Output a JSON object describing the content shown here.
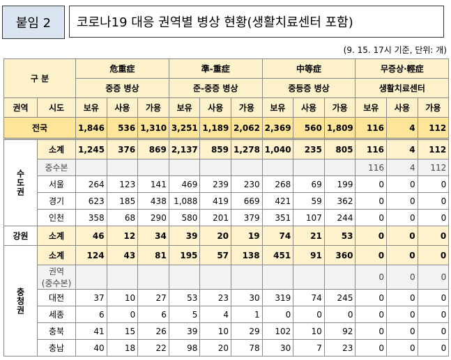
{
  "header": {
    "tag": "붙임 2",
    "title": "코로나19 대응 권역별 병상 현황(생활치료센터 포함)",
    "note": "(9. 15. 17시 기준, 단위: 개)"
  },
  "table": {
    "gubun": "구 분",
    "region_col": "권역",
    "sido_col": "시도",
    "sub_cols": [
      "보유",
      "사용",
      "가용"
    ],
    "groups": [
      {
        "top": "危重症",
        "label": "중증 병상"
      },
      {
        "top": "準-重症",
        "label": "준-중증 병상"
      },
      {
        "top": "中等症",
        "label": "중등증 병상"
      },
      {
        "top": "무증상·輕症",
        "label": "생활치료센터"
      }
    ],
    "national": {
      "name": "전국",
      "cells": [
        "1,846",
        "536",
        "1,310",
        "3,251",
        "1,189",
        "2,062",
        "2,369",
        "560",
        "1,809",
        "116",
        "4",
        "112"
      ]
    },
    "regions": [
      {
        "name": "수도권",
        "rows": [
          {
            "name": "소계",
            "cells": [
              "1,245",
              "376",
              "869",
              "2,137",
              "859",
              "1,278",
              "1,040",
              "235",
              "805",
              "116",
              "4",
              "112"
            ]
          },
          {
            "name": "중수본",
            "cells": [
              null,
              null,
              null,
              null,
              null,
              null,
              null,
              null,
              null,
              "116",
              "4",
              "112"
            ]
          },
          {
            "name": "서울",
            "cells": [
              "264",
              "123",
              "141",
              "469",
              "239",
              "230",
              "268",
              "69",
              "199",
              "0",
              "0",
              "0"
            ]
          },
          {
            "name": "경기",
            "cells": [
              "623",
              "185",
              "438",
              "1,088",
              "419",
              "669",
              "421",
              "59",
              "362",
              "0",
              "0",
              "0"
            ]
          },
          {
            "name": "인천",
            "cells": [
              "358",
              "68",
              "290",
              "580",
              "201",
              "379",
              "351",
              "107",
              "244",
              "0",
              "0",
              "0"
            ]
          }
        ]
      },
      {
        "name": "강원",
        "rows": [
          {
            "name": "소계",
            "cells": [
              "46",
              "12",
              "34",
              "39",
              "20",
              "19",
              "74",
              "21",
              "53",
              "0",
              "0",
              "0"
            ]
          }
        ]
      },
      {
        "name": "충청권",
        "rows": [
          {
            "name": "소계",
            "cells": [
              "124",
              "43",
              "81",
              "195",
              "57",
              "138",
              "451",
              "91",
              "360",
              "0",
              "0",
              "0"
            ]
          },
          {
            "name": "권역\n(중수본)",
            "cells": [
              null,
              null,
              null,
              null,
              null,
              null,
              null,
              null,
              null,
              "0",
              "0",
              "0"
            ]
          },
          {
            "name": "대전",
            "cells": [
              "37",
              "10",
              "27",
              "53",
              "23",
              "30",
              "319",
              "74",
              "245",
              "0",
              "0",
              "0"
            ]
          },
          {
            "name": "세종",
            "cells": [
              "6",
              "0",
              "6",
              "5",
              "4",
              "1",
              "0",
              "0",
              "0",
              "0",
              "0",
              "0"
            ]
          },
          {
            "name": "충북",
            "cells": [
              "41",
              "15",
              "26",
              "39",
              "10",
              "29",
              "102",
              "10",
              "92",
              "0",
              "0",
              "0"
            ]
          },
          {
            "name": "충남",
            "cells": [
              "40",
              "18",
              "22",
              "98",
              "20",
              "78",
              "30",
              "7",
              "23",
              "0",
              "0",
              "0"
            ]
          }
        ]
      }
    ]
  }
}
